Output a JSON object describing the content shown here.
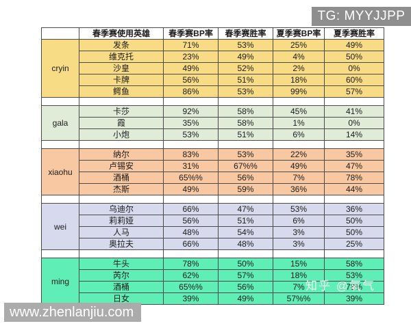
{
  "badges": {
    "tg": "TG: MYYJJPP",
    "website": "www.zhenlanjiu.com",
    "watermark": "知乎 @氧气"
  },
  "colors": {
    "tg_badge_bg": "#8e8e8e",
    "website_bar_bg": "#ababab",
    "cryin_row": "#f8dc85",
    "gala_row": "#e0ecd8",
    "xiaohu_row": "#f8c8a2",
    "wei_row": "#d6daec",
    "ming_row": "#5feeb6"
  },
  "table": {
    "headers": [
      "",
      "春季赛使用英雄",
      "春季赛BP率",
      "春季赛胜率",
      "夏季赛BP率",
      "夏季赛胜率"
    ],
    "sections": [
      {
        "player": "cryin",
        "color": "#f8dc85",
        "rows": [
          {
            "hero": "发条",
            "values": [
              "71%",
              "53%",
              "25%",
              "49%"
            ]
          },
          {
            "hero": "维克托",
            "values": [
              "23%",
              "49%",
              "4%",
              "50%"
            ]
          },
          {
            "hero": "沙皇",
            "values": [
              "49%",
              "52%",
              "2%",
              "0%"
            ]
          },
          {
            "hero": "卡牌",
            "values": [
              "56%",
              "51%",
              "18%",
              "60%"
            ]
          },
          {
            "hero": "鳄鱼",
            "values": [
              "86%",
              "53%",
              "99%",
              "57%"
            ]
          }
        ]
      },
      {
        "player": "gala",
        "color": "#e0ecd8",
        "rows": [
          {
            "hero": "卡莎",
            "values": [
              "92%",
              "58%",
              "45%",
              "41%"
            ]
          },
          {
            "hero": "霞",
            "values": [
              "35%",
              "58%",
              "1%",
              "0%"
            ]
          },
          {
            "hero": "小炮",
            "values": [
              "53%",
              "51%",
              "6%",
              "14%"
            ]
          }
        ]
      },
      {
        "player": "xiaohu",
        "color": "#f8c8a2",
        "rows": [
          {
            "hero": "纳尔",
            "values": [
              "83%",
              "53%",
              "22%",
              "35%"
            ]
          },
          {
            "hero": "卢锡安",
            "values": [
              "31%",
              "67%%",
              "49%",
              "47%"
            ]
          },
          {
            "hero": "酒桶",
            "values": [
              "65%%",
              "56%",
              "7%",
              "78%"
            ]
          },
          {
            "hero": "杰斯",
            "values": [
              "49%",
              "59%",
              "36%",
              "44%"
            ]
          }
        ]
      },
      {
        "player": "wei",
        "color": "#d6daec",
        "rows": [
          {
            "hero": "乌迪尔",
            "values": [
              "66%",
              "47%",
              "53%",
              "36%"
            ]
          },
          {
            "hero": "莉莉娅",
            "values": [
              "56%",
              "51%",
              "6%",
              "50%"
            ]
          },
          {
            "hero": "人马",
            "values": [
              "48%",
              "54%",
              "3%",
              "50%"
            ]
          },
          {
            "hero": "奥拉夫",
            "values": [
              "66%",
              "48%",
              "3%",
              "25%"
            ]
          }
        ]
      },
      {
        "player": "ming",
        "color": "#5feeb6",
        "rows": [
          {
            "hero": "牛头",
            "values": [
              "78%",
              "50%",
              "15%",
              "58%"
            ]
          },
          {
            "hero": "芮尔",
            "values": [
              "62%",
              "57%",
              "18%",
              "53%"
            ]
          },
          {
            "hero": "酒桶",
            "values": [
              "65%%",
              "56%",
              "7%",
              "78%"
            ]
          },
          {
            "hero": "日女",
            "values": [
              "39%",
              "49%",
              "57%%",
              "39%"
            ]
          }
        ]
      }
    ]
  }
}
